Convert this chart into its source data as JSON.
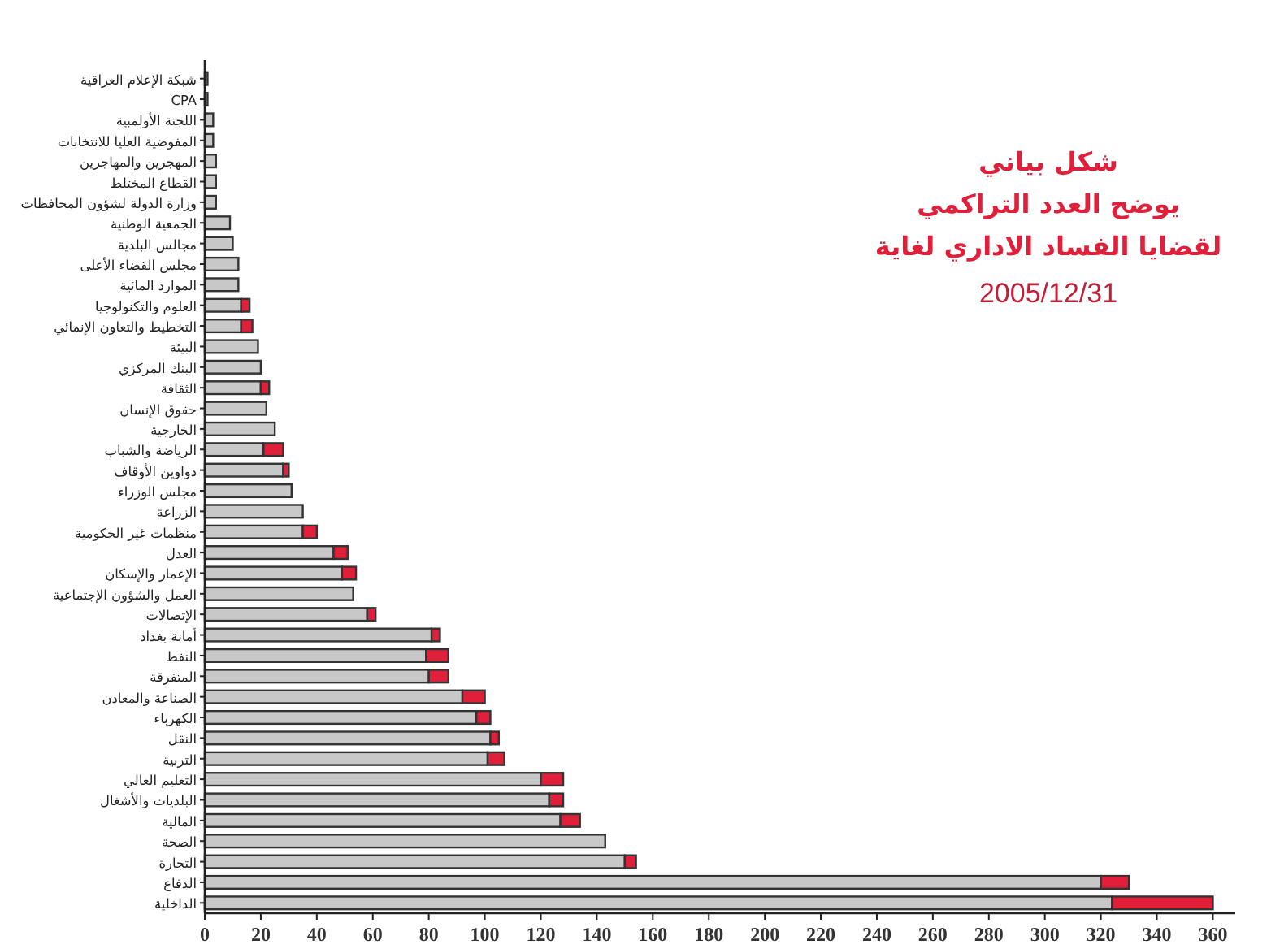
{
  "chart_data": {
    "type": "bar",
    "orientation": "horizontal",
    "stacked": true,
    "title": "شكل بياني\nيوضح العدد التراكمي\nلقضايا الفساد الاداري لغاية",
    "subtitle": "2005/12/31",
    "categories": [
      "شبكة الإعلام العراقية",
      "CPA",
      "اللجنة الأولمبية",
      "المفوضية العليا للانتخابات",
      "المهجرين والمهاجرين",
      "القطاع المختلط",
      "وزارة الدولة لشؤون المحافظات",
      "الجمعية الوطنية",
      "مجالس البلدية",
      "مجلس القضاء الأعلى",
      "الموارد المائية",
      "العلوم والتكنولوجيا",
      "التخطيط والتعاون الإنمائي",
      "البيئة",
      "البنك المركزي",
      "الثقافة",
      "حقوق الإنسان",
      "الخارجية",
      "الرياضة والشباب",
      "دواوين الأوقاف",
      "مجلس الوزراء",
      "الزراعة",
      "منظمات غير الحكومية",
      "العدل",
      "الإعمار والإسكان",
      "العمل والشؤون الإجتماعية",
      "الإتصالات",
      "أمانة بغداد",
      "النفط",
      "المتفرقة",
      "الصناعة والمعادن",
      "الكهرباء",
      "النقل",
      "التربية",
      "التعليم العالي",
      "البلديات والأشغال",
      "المالية",
      "الصحة",
      "التجارة",
      "الدفاع",
      "الداخلية"
    ],
    "series": [
      {
        "color": "#c8c8c8",
        "values": [
          1,
          1,
          3,
          3,
          4,
          4,
          4,
          9,
          10,
          12,
          12,
          13,
          13,
          19,
          20,
          20,
          22,
          25,
          21,
          28,
          31,
          35,
          35,
          46,
          49,
          53,
          58,
          81,
          79,
          80,
          92,
          97,
          102,
          101,
          120,
          123,
          127,
          143,
          150,
          320,
          324
        ]
      },
      {
        "color": "#e0203a",
        "values": [
          null,
          null,
          null,
          null,
          null,
          null,
          null,
          null,
          null,
          null,
          null,
          3,
          4,
          null,
          null,
          3,
          null,
          null,
          7,
          2,
          null,
          null,
          5,
          5,
          5,
          null,
          3,
          3,
          8,
          7,
          8,
          5,
          3,
          6,
          8,
          5,
          7,
          null,
          4,
          10,
          36
        ]
      }
    ],
    "xlim": [
      0,
      368
    ],
    "xticks": [
      0,
      20,
      40,
      60,
      80,
      100,
      120,
      140,
      160,
      180,
      200,
      220,
      240,
      260,
      280,
      300,
      320,
      340,
      360
    ],
    "grid": false
  }
}
